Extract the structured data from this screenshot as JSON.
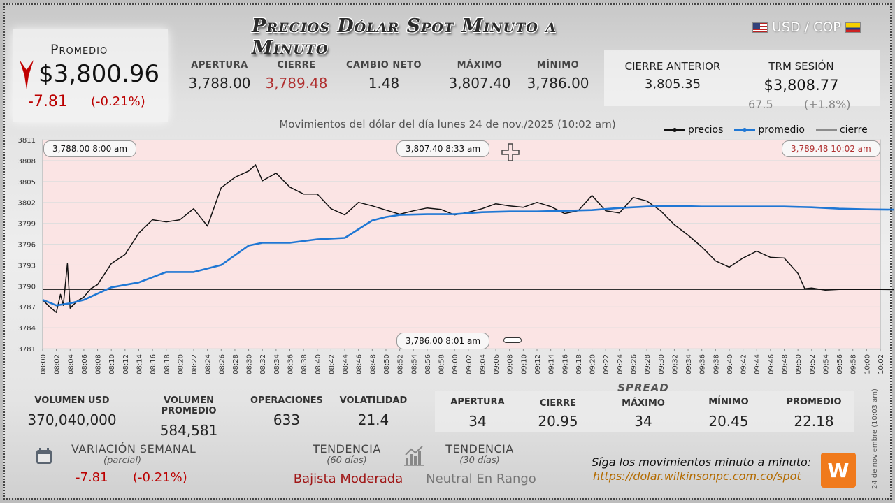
{
  "title": "Precios Dólar Spot Minuto a Minuto",
  "pair": "USD / COP",
  "promedio": {
    "label": "Promedio",
    "value": "$3,800.96",
    "change": "-7.81",
    "change_pct": "(-0.21%)"
  },
  "stats": [
    {
      "label": "APERTURA",
      "value": "3,788.00",
      "color": "#222222"
    },
    {
      "label": "CIERRE",
      "value": "3,789.48",
      "color": "#b03030"
    },
    {
      "label": "CAMBIO NETO",
      "value": "1.48",
      "color": "#222222"
    },
    {
      "label": "MÁXIMO",
      "value": "3,807.40",
      "color": "#222222"
    },
    {
      "label": "MÍNIMO",
      "value": "3,786.00",
      "color": "#222222"
    }
  ],
  "cierre_anterior": {
    "label": "CIERRE ANTERIOR",
    "value": "3,805.35"
  },
  "trm": {
    "label": "TRM SESIÓN",
    "value": "$3,808.77",
    "change": "67.5",
    "change_pct": "(+1.8%)"
  },
  "subtitle": "Movimientos del dólar del día lunes 24 de nov./2025 (10:02 am)",
  "legend": {
    "precios": "precios",
    "promedio": "promedio",
    "cierre": "cierre"
  },
  "chart_data": {
    "type": "line",
    "ylim": [
      3781,
      3811
    ],
    "y_ticks": [
      3811,
      3808,
      3805,
      3802,
      3799,
      3796,
      3793,
      3790,
      3787,
      3784,
      3781
    ],
    "x_ticks": [
      "08:00",
      "08:02",
      "08:04",
      "08:06",
      "08:08",
      "08:10",
      "08:12",
      "08:14",
      "08:16",
      "08:18",
      "08:20",
      "08:22",
      "08:24",
      "08:26",
      "08:28",
      "08:30",
      "08:32",
      "08:34",
      "08:36",
      "08:38",
      "08:40",
      "08:42",
      "08:44",
      "08:46",
      "08:48",
      "08:50",
      "08:52",
      "08:54",
      "08:56",
      "08:58",
      "09:00",
      "09:02",
      "09:04",
      "09:06",
      "09:08",
      "09:10",
      "09:12",
      "09:14",
      "09:16",
      "09:18",
      "09:20",
      "09:22",
      "09:24",
      "09:26",
      "09:28",
      "09:30",
      "09:32",
      "09:34",
      "09:36",
      "09:38",
      "09:40",
      "09:42",
      "09:44",
      "09:46",
      "09:48",
      "09:50",
      "09:52",
      "09:54",
      "09:56",
      "09:58",
      "10:00",
      "10:02"
    ],
    "cierre_line": 3789.48,
    "series": [
      {
        "name": "precios",
        "color": "#111111",
        "x": [
          0,
          0.5,
          1,
          1.3,
          1.5,
          1.8,
          2,
          2.5,
          3,
          3.5,
          4,
          5,
          6,
          7,
          8,
          9,
          10,
          11,
          12,
          13,
          14,
          15,
          15.5,
          16,
          17,
          18,
          19,
          20,
          21,
          22,
          23,
          24,
          25,
          26,
          27,
          28,
          29,
          30,
          31,
          32,
          33,
          34,
          35,
          36,
          37,
          38,
          39,
          40,
          41,
          42,
          43,
          44,
          45,
          46,
          47,
          48,
          49,
          50,
          51,
          52,
          53,
          54,
          55,
          55.5,
          56,
          57,
          58,
          59,
          60,
          61,
          62
        ],
        "y": [
          3788.0,
          3787.0,
          3786.2,
          3788.8,
          3787.2,
          3793.2,
          3786.8,
          3787.8,
          3788.4,
          3789.6,
          3790.2,
          3793.2,
          3794.5,
          3797.6,
          3799.5,
          3799.2,
          3799.5,
          3801.1,
          3798.6,
          3804.1,
          3805.6,
          3806.5,
          3807.4,
          3805.1,
          3806.2,
          3804.2,
          3803.2,
          3803.2,
          3801.1,
          3800.2,
          3802.0,
          3801.5,
          3800.9,
          3800.3,
          3800.8,
          3801.2,
          3801.0,
          3800.2,
          3800.6,
          3801.1,
          3801.8,
          3801.5,
          3801.3,
          3802.0,
          3801.4,
          3800.4,
          3800.8,
          3803.0,
          3800.8,
          3800.5,
          3802.7,
          3802.2,
          3800.8,
          3798.8,
          3797.3,
          3795.6,
          3793.6,
          3792.7,
          3794.0,
          3795.0,
          3794.1,
          3794.0,
          3791.8,
          3789.6,
          3789.7,
          3789.4,
          3789.5,
          3789.5,
          3789.5,
          3789.5,
          3789.48
        ]
      },
      {
        "name": "promedio",
        "color": "#1f77d4",
        "x": [
          0,
          1,
          2,
          3,
          5,
          7,
          9,
          11,
          13,
          15,
          16,
          18,
          20,
          22,
          24,
          25,
          26,
          28,
          30,
          32,
          34,
          36,
          38,
          40,
          42,
          44,
          46,
          48,
          50,
          52,
          54,
          56,
          58,
          60,
          62
        ],
        "y": [
          3788.0,
          3787.2,
          3787.5,
          3788.0,
          3789.8,
          3790.5,
          3792.0,
          3792.0,
          3793.0,
          3795.8,
          3796.2,
          3796.2,
          3796.7,
          3796.9,
          3799.4,
          3799.9,
          3800.2,
          3800.3,
          3800.3,
          3800.6,
          3800.7,
          3800.7,
          3800.8,
          3800.9,
          3801.2,
          3801.4,
          3801.5,
          3801.4,
          3801.4,
          3801.4,
          3801.4,
          3801.3,
          3801.1,
          3801.0,
          3800.96
        ]
      }
    ],
    "annotations": [
      {
        "text": "3,788.00   8:00 am"
      },
      {
        "text": "3,807.40   8:33 am"
      },
      {
        "text": "3,789.48   10:02 am",
        "color": "#b03030"
      },
      {
        "text": "3,786.00     8:01 am"
      }
    ]
  },
  "bottom": [
    {
      "label": "VOLUMEN USD",
      "value": "370,040,000"
    },
    {
      "label": "VOLUMEN PROMEDIO",
      "value": "584,581"
    },
    {
      "label": "OPERACIONES",
      "value": "633"
    },
    {
      "label": "VOLATILIDAD",
      "value": "21.4"
    }
  ],
  "spread": {
    "label": "SPREAD",
    "items": [
      {
        "label": "APERTURA",
        "value": "34"
      },
      {
        "label": "CIERRE",
        "value": "20.95"
      },
      {
        "label": "MÁXIMO",
        "value": "34"
      },
      {
        "label": "MÍNIMO",
        "value": "20.45"
      },
      {
        "label": "PROMEDIO",
        "value": "22.18"
      }
    ]
  },
  "variacion": {
    "label": "VARIACIÓN SEMANAL",
    "sub": "(parcial)",
    "change": "-7.81",
    "change_pct": "(-0.21%)"
  },
  "tendencia60": {
    "label": "TENDENCIA",
    "sub": "(60 días)",
    "value": "Bajista Moderada",
    "color": "#a01818"
  },
  "tendencia30": {
    "label": "TENDENCIA",
    "sub": "(30 días)",
    "value": "Neutral En Rango",
    "color": "#777777"
  },
  "follow": {
    "text": "Síga los movimientos minuto a minuto:",
    "url": "https://dolar.wilkinsonpc.com.co/spot",
    "logo_text": "W"
  },
  "side_date": "24 de noviembre (10:03 am)",
  "icons": {
    "variacion": "calendar-icon",
    "tendencia": "bar-chart-icon",
    "arrow": "down-arrow-icon",
    "crosshair": "crosshair-icon"
  }
}
